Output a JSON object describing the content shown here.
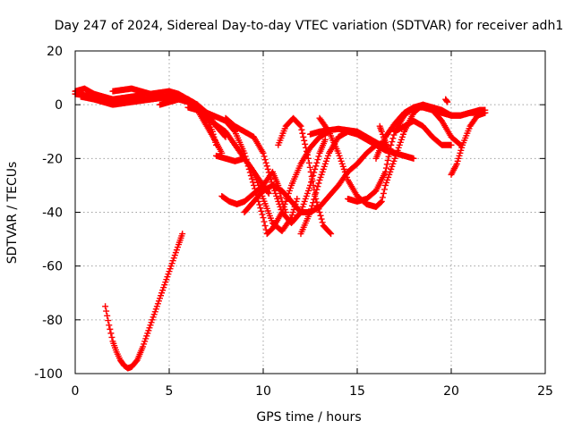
{
  "chart_data": {
    "type": "scatter",
    "title": "Day 247 of 2024, Sidereal Day-to-day VTEC variation (SDTVAR) for receiver adh1",
    "xlabel": "GPS time / hours",
    "ylabel": "SDTVAR / TECUs",
    "xlim": [
      0,
      25
    ],
    "ylim": [
      -100,
      20
    ],
    "xticks": [
      0,
      5,
      10,
      15,
      20,
      25
    ],
    "yticks": [
      -100,
      -80,
      -60,
      -40,
      -20,
      0,
      20
    ],
    "grid": true,
    "marker": "+",
    "color": "#ff0000",
    "series": [
      {
        "name": "track-1",
        "x": [
          0.0,
          1.0,
          2.0,
          3.0,
          4.0,
          5.0,
          6.0,
          6.5,
          7.0,
          7.3,
          7.5
        ],
        "y": [
          4,
          3,
          2,
          1.5,
          2,
          3,
          2,
          0,
          -5,
          -10,
          -15
        ]
      },
      {
        "name": "track-2",
        "x": [
          0.0,
          0.5,
          1.0,
          1.5,
          2.0,
          3.0,
          4.0,
          5.0,
          5.5,
          6.0,
          6.5,
          7.0,
          7.5,
          7.8
        ],
        "y": [
          5,
          6,
          4,
          3,
          2,
          3,
          4,
          5,
          4,
          2,
          -2,
          -8,
          -14,
          -18
        ]
      },
      {
        "name": "track-3",
        "x": [
          0.3,
          1.0,
          2.0,
          3.0,
          4.0,
          5.0,
          6.0,
          7.0,
          8.0,
          9.0,
          10.0,
          10.3
        ],
        "y": [
          3,
          2,
          0,
          1,
          2,
          3,
          1,
          -5,
          -10,
          -20,
          -30,
          -33
        ]
      },
      {
        "name": "track-4",
        "x": [
          2.0,
          2.5,
          3.0,
          3.5,
          4.0,
          4.5,
          5.0,
          5.3
        ],
        "y": [
          5,
          5.5,
          6,
          5,
          4,
          3,
          2,
          1.5
        ]
      },
      {
        "name": "track-5",
        "x": [
          4.5,
          5.0,
          5.5,
          6.0,
          6.5,
          7.0,
          7.5,
          8.0
        ],
        "y": [
          0,
          1,
          2,
          2,
          0,
          -3,
          -8,
          -12
        ]
      },
      {
        "name": "track-6",
        "x": [
          6.0,
          7.0,
          8.0,
          8.5,
          9.0,
          9.5,
          10.0,
          10.2,
          10.5,
          11.0,
          11.5,
          12.0,
          12.5,
          13.0,
          13.5
        ],
        "y": [
          -1,
          -3,
          -6,
          -10,
          -18,
          -30,
          -42,
          -48,
          -46,
          -40,
          -30,
          -22,
          -16,
          -12,
          -10
        ]
      },
      {
        "name": "track-7",
        "x": [
          7.5,
          8.0,
          8.5,
          9.0,
          9.5,
          10.0,
          10.5,
          11.0,
          11.5,
          11.8
        ],
        "y": [
          -19,
          -20,
          -21,
          -20,
          -25,
          -35,
          -44,
          -47,
          -42,
          -35
        ]
      },
      {
        "name": "track-8",
        "x": [
          7.8,
          8.2,
          8.6,
          9.0,
          9.5,
          10.0,
          10.5,
          10.8,
          11.0,
          11.2
        ],
        "y": [
          -34,
          -36,
          -37,
          -36,
          -33,
          -30,
          -25,
          -30,
          -36,
          -40
        ]
      },
      {
        "name": "track-9",
        "x": [
          8.0,
          8.5,
          9.0,
          9.5,
          10.0,
          10.5,
          11.0,
          11.5,
          12.0,
          12.5,
          13.0,
          13.3
        ],
        "y": [
          -5,
          -8,
          -10,
          -12,
          -18,
          -30,
          -40,
          -44,
          -40,
          -30,
          -18,
          -13
        ]
      },
      {
        "name": "track-10",
        "x": [
          9.0,
          9.5,
          10.0,
          10.5,
          11.0,
          11.5,
          12.0,
          12.5,
          13.0,
          13.5,
          14.0,
          14.5,
          15.0,
          15.5,
          16.0,
          16.5
        ],
        "y": [
          -40,
          -36,
          -32,
          -30,
          -32,
          -36,
          -40,
          -40,
          -38,
          -34,
          -30,
          -25,
          -22,
          -18,
          -15,
          -14
        ]
      },
      {
        "name": "track-11",
        "x": [
          10.8,
          11.2,
          11.6,
          12.0,
          12.4,
          12.8,
          13.2,
          13.6
        ],
        "y": [
          -15,
          -8,
          -5,
          -8,
          -20,
          -35,
          -45,
          -48
        ]
      },
      {
        "name": "track-12",
        "x": [
          12.0,
          12.5,
          13.0,
          13.5,
          14.0,
          14.5,
          15.0,
          15.5,
          16.0,
          16.5,
          17.0,
          17.5,
          18.0
        ],
        "y": [
          -48,
          -40,
          -28,
          -18,
          -12,
          -10,
          -11,
          -13,
          -15,
          -17,
          -18,
          -19,
          -20
        ]
      },
      {
        "name": "track-13",
        "x": [
          12.5,
          13.0,
          13.5,
          14.0,
          14.5,
          15.0,
          15.5,
          16.0,
          16.5,
          17.0
        ],
        "y": [
          -11,
          -10,
          -9.5,
          -9,
          -9.5,
          -10,
          -12,
          -14,
          -16,
          -18
        ]
      },
      {
        "name": "track-14",
        "x": [
          13.0,
          13.5,
          14.0,
          14.5,
          15.0,
          15.5,
          16.0,
          16.3,
          16.5,
          17.0,
          17.5,
          18.0,
          18.5,
          19.0,
          19.5,
          20.0
        ],
        "y": [
          -5,
          -10,
          -18,
          -28,
          -34,
          -37,
          -38,
          -36,
          -30,
          -20,
          -10,
          -3,
          0,
          -1,
          -2,
          -4
        ]
      },
      {
        "name": "track-15",
        "x": [
          14.5,
          15.0,
          15.5,
          16.0,
          16.5,
          16.8,
          17.0,
          17.5,
          18.0,
          18.5,
          19.0,
          19.5,
          20.0,
          20.5
        ],
        "y": [
          -35,
          -36,
          -35,
          -32,
          -25,
          -15,
          -10,
          -4,
          -1,
          0,
          -2,
          -6,
          -12,
          -15
        ]
      },
      {
        "name": "track-16",
        "x": [
          16.0,
          16.3,
          16.5,
          17.0,
          17.5,
          18.0,
          18.5,
          19.0,
          19.5,
          20.0,
          20.5,
          21.0,
          21.5,
          21.8
        ],
        "y": [
          -20,
          -15,
          -12,
          -7,
          -3,
          -1,
          -1,
          -2,
          -3,
          -4,
          -4,
          -3,
          -2,
          -2
        ]
      },
      {
        "name": "track-17",
        "x": [
          17.0,
          17.5,
          18.0,
          18.5,
          19.0,
          19.5,
          20.0
        ],
        "y": [
          -10,
          -8,
          -6,
          -8,
          -12,
          -15,
          -15
        ]
      },
      {
        "name": "track-18",
        "x": [
          19.0,
          19.5,
          20.0,
          20.5,
          21.0,
          21.5,
          21.8
        ],
        "y": [
          -1,
          -3,
          -4,
          -4,
          -3,
          -3,
          -3
        ]
      },
      {
        "name": "track-19",
        "x": [
          20.0,
          20.3,
          20.6,
          21.0,
          21.4,
          21.8
        ],
        "y": [
          -26,
          -22,
          -15,
          -8,
          -4,
          -3
        ]
      },
      {
        "name": "track-20",
        "x": [
          1.6,
          1.8,
          2.0,
          2.2,
          2.4,
          2.6,
          2.8,
          3.0,
          3.3,
          3.6,
          4.0,
          4.5,
          5.0,
          5.5,
          5.7
        ],
        "y": [
          -75,
          -82,
          -88,
          -92,
          -95,
          -97,
          -98,
          -97.5,
          -95,
          -90,
          -82,
          -72,
          -62,
          -52,
          -48
        ]
      },
      {
        "name": "track-21",
        "x": [
          16.2,
          16.3,
          16.4,
          16.5,
          16.6
        ],
        "y": [
          -8,
          -10,
          -12,
          -14,
          -16
        ]
      },
      {
        "name": "track-22",
        "x": [
          19.7,
          19.8
        ],
        "y": [
          2,
          1
        ]
      }
    ]
  }
}
